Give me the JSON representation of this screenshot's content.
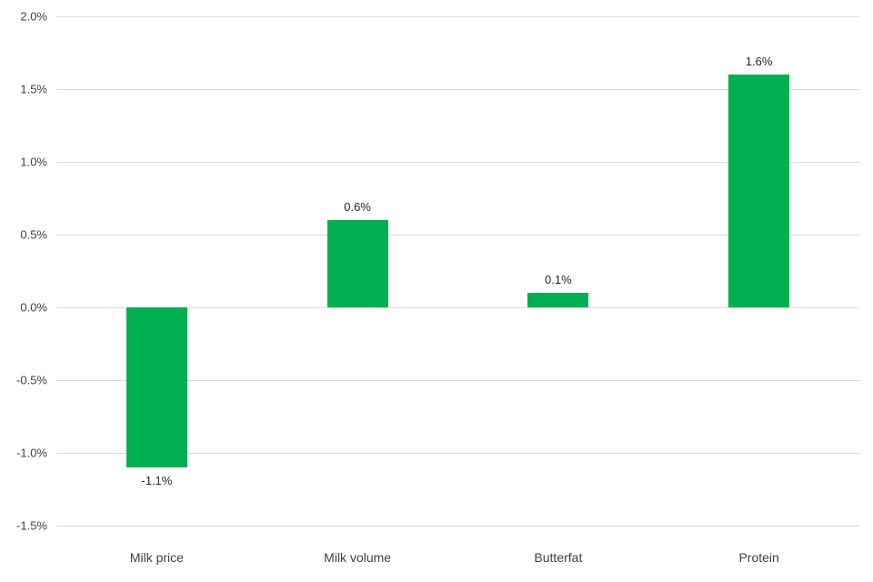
{
  "chart_data": {
    "type": "bar",
    "title": "",
    "xlabel": "",
    "ylabel": "",
    "categories": [
      "Milk price",
      "Milk volume",
      "Butterfat",
      "Protein"
    ],
    "values": [
      -1.1,
      0.6,
      0.1,
      1.6
    ],
    "data_labels": [
      "-1.1%",
      "0.6%",
      "0.1%",
      "1.6%"
    ],
    "ylim": [
      -1.5,
      2.0
    ],
    "ytick_step": 0.5,
    "ytick_labels": [
      "-1.5%",
      "-1.0%",
      "-0.5%",
      "0.0%",
      "0.5%",
      "1.0%",
      "1.5%",
      "2.0%"
    ],
    "grid": true,
    "legend": false,
    "colors": {
      "bar": "#00B050",
      "gridline": "#d9d9d9",
      "axis_text": "#404040",
      "label_text": "#262626",
      "background": "#ffffff"
    }
  }
}
